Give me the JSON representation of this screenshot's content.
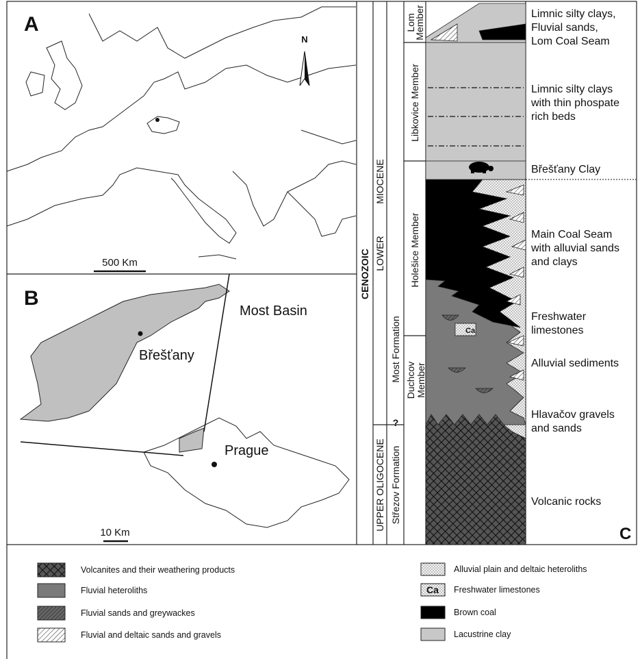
{
  "panel_a": {
    "label": "A",
    "north": "N",
    "scale": "500 Km"
  },
  "panel_b": {
    "label": "B",
    "basin": "Most Basin",
    "site": "Břešťany",
    "city": "Prague",
    "scale": "10 Km"
  },
  "panel_c": {
    "label": "C",
    "era": "CENOZOIC",
    "lower_miocene": [
      "LOWER",
      "MIOCENE"
    ],
    "upper_oligocene": "UPPER OLIGOCENE",
    "formations": [
      "Most Formation",
      "Střezov Formation"
    ],
    "uncertain": "?",
    "members": [
      [
        "Lom",
        "Member"
      ],
      [
        "Libkovice Member"
      ],
      [
        "Holešice Member"
      ],
      [
        "Duchcov",
        "Member"
      ]
    ],
    "limestone_symbol": "Ca",
    "descriptions": [
      [
        "Limnic silty clays,",
        "Fluvial sands,",
        "Lom Coal Seam"
      ],
      [
        "Limnic silty clays",
        "with thin phospate",
        "rich beds"
      ],
      [
        "Břešťany Clay"
      ],
      [
        "Main Coal Seam",
        "with alluvial sands",
        "and clays"
      ],
      [
        "Freshwater",
        "limestones"
      ],
      [
        "Alluvial sediments"
      ],
      [
        "Hlavačov gravels",
        "and sands"
      ],
      [
        "Volcanic rocks"
      ]
    ]
  },
  "legend": {
    "left": [
      "Volcanites and their weathering products",
      "Fluvial heteroliths",
      "Fluvial sands and greywackes",
      "Fluvial and deltaic sands and gravels"
    ],
    "right": [
      "Alluvial plain and deltaic heteroliths",
      "Freshwater limestones",
      "Brown coal",
      "Lacustrine clay"
    ],
    "limestone_symbol": "Ca"
  }
}
